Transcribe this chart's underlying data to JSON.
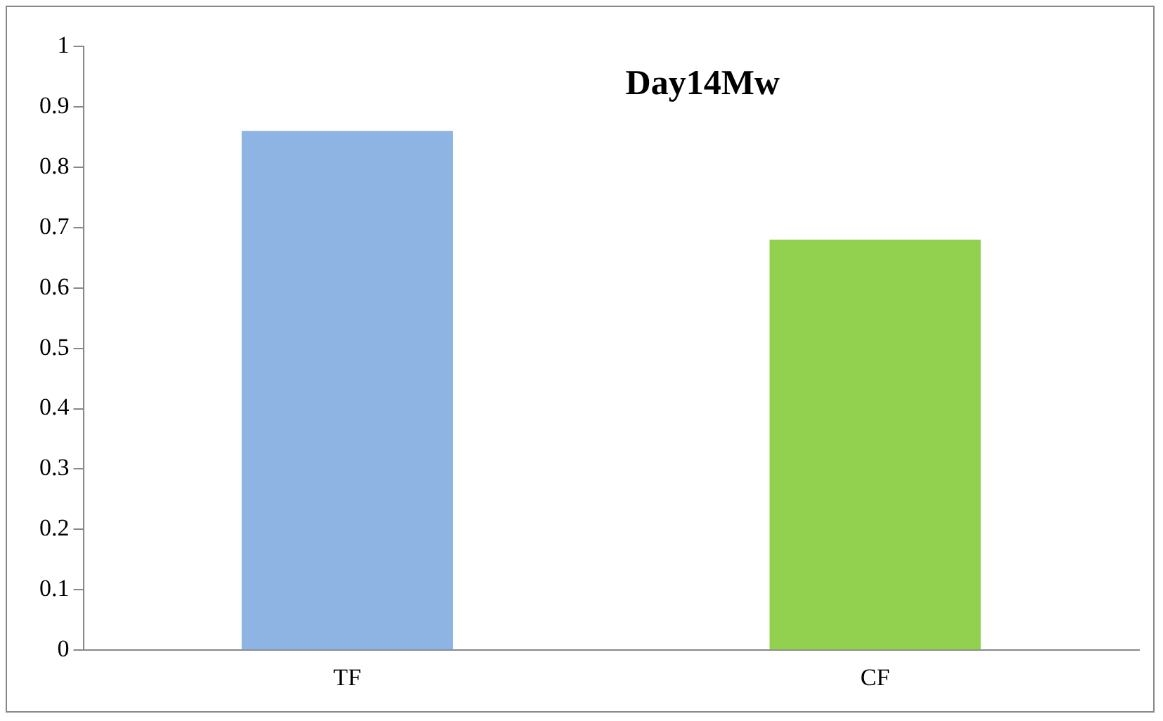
{
  "chart_data": {
    "type": "bar",
    "title": "Day14Mw",
    "categories": [
      "TF",
      "CF"
    ],
    "values": [
      0.86,
      0.68
    ],
    "colors": [
      "#8eb4e3",
      "#92d050"
    ],
    "ylim": [
      0,
      1
    ],
    "yticks": [
      0,
      0.1,
      0.2,
      0.3,
      0.4,
      0.5,
      0.6,
      0.7,
      0.8,
      0.9,
      1
    ],
    "grid": false,
    "legend": false
  }
}
